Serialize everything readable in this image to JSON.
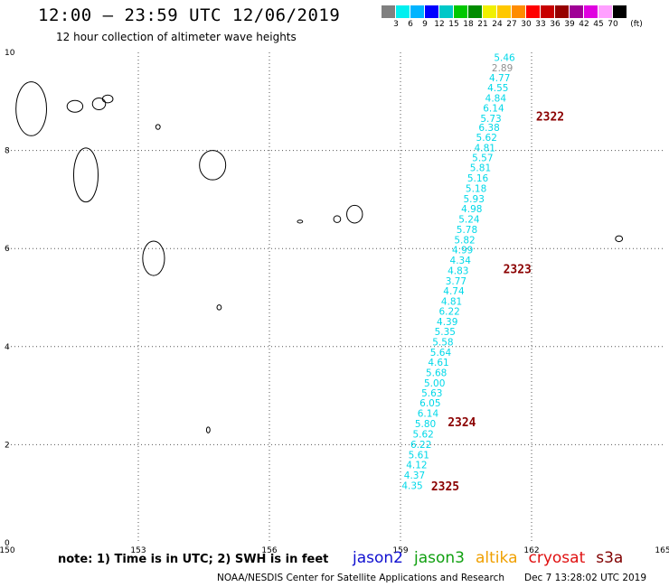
{
  "header": {
    "title": "12:00 – 23:59 UTC 12/06/2019",
    "subtitle": "12 hour collection of altimeter wave heights"
  },
  "scale": {
    "colors": [
      "#808080",
      "#00f0f0",
      "#00b4ff",
      "#0000ff",
      "#00c8c8",
      "#00c800",
      "#008c00",
      "#f0f000",
      "#ffc800",
      "#ff8c00",
      "#ff0000",
      "#c80000",
      "#960000",
      "#a00096",
      "#e000e0",
      "#ffa0ff",
      "#000000"
    ],
    "labels": [
      "3",
      "6",
      "9",
      "12",
      "15",
      "18",
      "21",
      "24",
      "27",
      "30",
      "33",
      "36",
      "39",
      "42",
      "45",
      "70"
    ],
    "unit": "(ft)"
  },
  "axes": {
    "x_ticks": [
      "150",
      "153",
      "156",
      "159",
      "162",
      "165"
    ],
    "y_ticks": [
      "0",
      "2",
      "4",
      "6",
      "8",
      "10"
    ],
    "x_range": [
      150,
      165
    ],
    "y_range": [
      0,
      10
    ]
  },
  "track": {
    "color": "#00d8e8",
    "points": [
      {
        "x": 161.38,
        "y": 9.9,
        "v": "5.46"
      },
      {
        "x": 161.33,
        "y": 9.69,
        "v": "2.89",
        "color": "#909090"
      },
      {
        "x": 161.27,
        "y": 9.48,
        "v": "4.77"
      },
      {
        "x": 161.23,
        "y": 9.28,
        "v": "4.55"
      },
      {
        "x": 161.18,
        "y": 9.07,
        "v": "4.84"
      },
      {
        "x": 161.13,
        "y": 8.87,
        "v": "6.14"
      },
      {
        "x": 161.07,
        "y": 8.66,
        "v": "5.73"
      },
      {
        "x": 161.03,
        "y": 8.47,
        "v": "6.38"
      },
      {
        "x": 160.97,
        "y": 8.27,
        "v": "5.62"
      },
      {
        "x": 160.93,
        "y": 8.06,
        "v": "4.81"
      },
      {
        "x": 160.88,
        "y": 7.85,
        "v": "5.57"
      },
      {
        "x": 160.83,
        "y": 7.65,
        "v": "5.81"
      },
      {
        "x": 160.77,
        "y": 7.44,
        "v": "5.16"
      },
      {
        "x": 160.73,
        "y": 7.23,
        "v": "5.18"
      },
      {
        "x": 160.68,
        "y": 7.02,
        "v": "5.93"
      },
      {
        "x": 160.63,
        "y": 6.81,
        "v": "4.98"
      },
      {
        "x": 160.57,
        "y": 6.6,
        "v": "5.24"
      },
      {
        "x": 160.52,
        "y": 6.39,
        "v": "5.78"
      },
      {
        "x": 160.47,
        "y": 6.18,
        "v": "5.82"
      },
      {
        "x": 160.42,
        "y": 5.98,
        "v": "4.99"
      },
      {
        "x": 160.37,
        "y": 5.76,
        "v": "4.34"
      },
      {
        "x": 160.32,
        "y": 5.55,
        "v": "4.83"
      },
      {
        "x": 160.27,
        "y": 5.34,
        "v": "3.77"
      },
      {
        "x": 160.22,
        "y": 5.14,
        "v": "4.74"
      },
      {
        "x": 160.17,
        "y": 4.93,
        "v": "4.81"
      },
      {
        "x": 160.12,
        "y": 4.72,
        "v": "6.22"
      },
      {
        "x": 160.07,
        "y": 4.51,
        "v": "4.39"
      },
      {
        "x": 160.02,
        "y": 4.31,
        "v": "5.35"
      },
      {
        "x": 159.97,
        "y": 4.1,
        "v": "5.58"
      },
      {
        "x": 159.92,
        "y": 3.89,
        "v": "5.64"
      },
      {
        "x": 159.87,
        "y": 3.68,
        "v": "4.61"
      },
      {
        "x": 159.82,
        "y": 3.47,
        "v": "5.68"
      },
      {
        "x": 159.78,
        "y": 3.26,
        "v": "5.00"
      },
      {
        "x": 159.72,
        "y": 3.06,
        "v": "5.63"
      },
      {
        "x": 159.68,
        "y": 2.85,
        "v": "6.05"
      },
      {
        "x": 159.63,
        "y": 2.64,
        "v": "6.14"
      },
      {
        "x": 159.57,
        "y": 2.43,
        "v": "5.80"
      },
      {
        "x": 159.52,
        "y": 2.22,
        "v": "5.62"
      },
      {
        "x": 159.47,
        "y": 2.01,
        "v": "6.22"
      },
      {
        "x": 159.42,
        "y": 1.8,
        "v": "5.61"
      },
      {
        "x": 159.37,
        "y": 1.59,
        "v": "4.12"
      },
      {
        "x": 159.32,
        "y": 1.38,
        "v": "4.37"
      },
      {
        "x": 159.27,
        "y": 1.17,
        "v": "4.35"
      }
    ]
  },
  "time_labels": [
    {
      "x": 162.1,
      "y": 8.68,
      "text": "2322"
    },
    {
      "x": 161.35,
      "y": 5.57,
      "text": "2323"
    },
    {
      "x": 160.08,
      "y": 2.45,
      "text": "2324"
    },
    {
      "x": 159.7,
      "y": 1.14,
      "text": "2325"
    }
  ],
  "islands": [
    {
      "x": 150.55,
      "y": 8.85,
      "rx": 0.35,
      "ry": 0.55
    },
    {
      "x": 151.55,
      "y": 8.9,
      "rx": 0.18,
      "ry": 0.12
    },
    {
      "x": 152.1,
      "y": 8.95,
      "rx": 0.15,
      "ry": 0.12
    },
    {
      "x": 152.3,
      "y": 9.05,
      "rx": 0.12,
      "ry": 0.08
    },
    {
      "x": 153.45,
      "y": 8.48,
      "rx": 0.05,
      "ry": 0.05
    },
    {
      "x": 151.8,
      "y": 7.5,
      "rx": 0.28,
      "ry": 0.55
    },
    {
      "x": 154.7,
      "y": 7.7,
      "rx": 0.3,
      "ry": 0.3
    },
    {
      "x": 157.95,
      "y": 6.7,
      "rx": 0.18,
      "ry": 0.18
    },
    {
      "x": 157.55,
      "y": 6.6,
      "rx": 0.08,
      "ry": 0.07
    },
    {
      "x": 153.35,
      "y": 5.8,
      "rx": 0.25,
      "ry": 0.35
    },
    {
      "x": 156.7,
      "y": 6.55,
      "rx": 0.06,
      "ry": 0.03
    },
    {
      "x": 164.0,
      "y": 6.2,
      "rx": 0.08,
      "ry": 0.06
    },
    {
      "x": 154.85,
      "y": 4.8,
      "rx": 0.05,
      "ry": 0.05
    },
    {
      "x": 154.6,
      "y": 2.3,
      "rx": 0.04,
      "ry": 0.06
    }
  ],
  "note": "note:  1) Time is in UTC;  2) SWH is in feet",
  "missions": [
    {
      "name": "jason2",
      "color": "#1010d0"
    },
    {
      "name": "jason3",
      "color": "#10a010"
    },
    {
      "name": "altika",
      "color": "#f0a000"
    },
    {
      "name": "cryosat",
      "color": "#e01010"
    },
    {
      "name": "s3a",
      "color": "#800000"
    }
  ],
  "footer": "NOAA/NESDIS Center for Satellite Applications and Research",
  "footer_stamp": "Dec  7 13:28:02 UTC 2019"
}
